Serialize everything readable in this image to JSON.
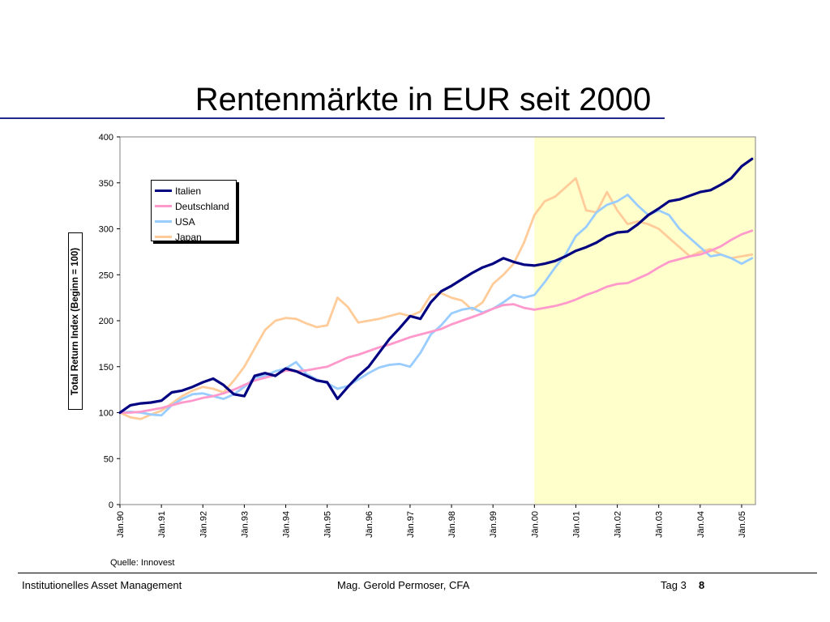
{
  "slide": {
    "title": "Rentenmärkte in EUR seit 2000",
    "source": "Quelle: Innovest",
    "footer_left": "Institutionelles Asset Management",
    "footer_center": "Mag. Gerold Permoser, CFA",
    "footer_right": "Tag 3",
    "page_number": "8"
  },
  "colors": {
    "title_rule": "#1f2a8a",
    "highlight": "#ffffcc",
    "Italien": "#000080",
    "Deutschland": "#ff99cc",
    "USA": "#99ccff",
    "Japan": "#ffcc99"
  },
  "chart_data": {
    "type": "line",
    "title": "",
    "xlabel": "",
    "ylabel": "Total Return Index (Beginn = 100)",
    "ylim": [
      0,
      400
    ],
    "yticks": [
      0,
      50,
      100,
      150,
      200,
      250,
      300,
      350,
      400
    ],
    "categories": [
      "Jän.90",
      "Jän.91",
      "Jän.92",
      "Jän.93",
      "Jän.94",
      "Jän.95",
      "Jän.96",
      "Jän.97",
      "Jän.98",
      "Jän.99",
      "Jän.00",
      "Jän.01",
      "Jän.02",
      "Jän.03",
      "Jän.04",
      "Jän.05"
    ],
    "x": [
      1990,
      1990.25,
      1990.5,
      1990.75,
      1991,
      1991.25,
      1991.5,
      1991.75,
      1992,
      1992.25,
      1992.5,
      1992.75,
      1993,
      1993.25,
      1993.5,
      1993.75,
      1994,
      1994.25,
      1994.5,
      1994.75,
      1995,
      1995.25,
      1995.5,
      1995.75,
      1996,
      1996.25,
      1996.5,
      1996.75,
      1997,
      1997.25,
      1997.5,
      1997.75,
      1998,
      1998.25,
      1998.5,
      1998.75,
      1999,
      1999.25,
      1999.5,
      1999.75,
      2000,
      2000.25,
      2000.5,
      2000.75,
      2001,
      2001.25,
      2001.5,
      2001.75,
      2002,
      2002.25,
      2002.5,
      2002.75,
      2003,
      2003.25,
      2003.5,
      2003.75,
      2004,
      2004.25,
      2004.5,
      2004.75,
      2005,
      2005.25
    ],
    "highlight_from": 2000,
    "highlight_to": 2005.33,
    "series": [
      {
        "name": "Italien",
        "values": [
          100,
          108,
          110,
          111,
          113,
          122,
          124,
          128,
          133,
          137,
          130,
          120,
          118,
          140,
          143,
          140,
          148,
          145,
          140,
          135,
          133,
          115,
          128,
          140,
          150,
          165,
          180,
          192,
          205,
          202,
          220,
          232,
          238,
          245,
          252,
          258,
          262,
          268,
          264,
          261,
          260,
          262,
          265,
          270,
          276,
          280,
          285,
          292,
          296,
          297,
          305,
          315,
          322,
          330,
          332,
          336,
          340,
          342,
          348,
          355,
          368,
          376
        ]
      },
      {
        "name": "Deutschland",
        "values": [
          100,
          100,
          101,
          103,
          105,
          108,
          111,
          113,
          116,
          118,
          121,
          125,
          130,
          135,
          138,
          141,
          146,
          145,
          146,
          148,
          150,
          155,
          160,
          163,
          167,
          171,
          174,
          178,
          182,
          185,
          188,
          191,
          196,
          200,
          204,
          208,
          213,
          217,
          218,
          214,
          212,
          214,
          216,
          219,
          223,
          228,
          232,
          237,
          240,
          241,
          246,
          251,
          258,
          264,
          267,
          270,
          272,
          276,
          281,
          288,
          294,
          298
        ]
      },
      {
        "name": "USA",
        "values": [
          100,
          101,
          100,
          98,
          97,
          108,
          115,
          120,
          121,
          118,
          115,
          120,
          128,
          138,
          140,
          145,
          148,
          155,
          142,
          136,
          132,
          126,
          129,
          136,
          143,
          149,
          152,
          153,
          150,
          165,
          185,
          195,
          208,
          212,
          214,
          209,
          213,
          220,
          228,
          225,
          228,
          242,
          258,
          272,
          292,
          302,
          318,
          326,
          330,
          337,
          325,
          315,
          320,
          315,
          300,
          290,
          280,
          270,
          272,
          268,
          262,
          268
        ]
      },
      {
        "name": "Japan",
        "values": [
          100,
          95,
          93,
          98,
          102,
          110,
          118,
          124,
          128,
          126,
          122,
          135,
          150,
          170,
          190,
          200,
          203,
          202,
          197,
          193,
          195,
          225,
          215,
          198,
          200,
          202,
          205,
          208,
          205,
          210,
          228,
          230,
          225,
          222,
          212,
          220,
          240,
          250,
          262,
          285,
          315,
          330,
          335,
          345,
          355,
          320,
          318,
          340,
          320,
          305,
          308,
          305,
          300,
          290,
          280,
          270,
          275,
          278,
          272,
          268,
          270,
          272
        ]
      }
    ],
    "legend_position": "top-left",
    "grid": false
  }
}
